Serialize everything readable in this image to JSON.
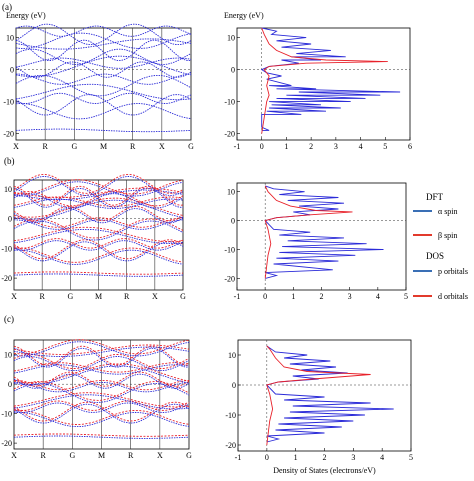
{
  "panel_labels": [
    "(a)",
    "(b)",
    "(c)"
  ],
  "legend": {
    "dft_title": "DFT",
    "dos_title": "DOS",
    "items": [
      {
        "label": "α spin",
        "color": "#3a6fb5"
      },
      {
        "label": "β spin",
        "color": "#e23a2c"
      },
      {
        "label": "p orbitals",
        "color": "#3a6fb5"
      },
      {
        "label": "d orbitals",
        "color": "#e23a2c"
      }
    ]
  },
  "colors": {
    "alpha_spin": "#2b2bd8",
    "beta_spin": "#e8212a",
    "frame": "#000000",
    "grid": "#333333"
  },
  "chart_data": [
    {
      "type": "line",
      "name": "band structure (a)",
      "ylabel": "Energy (eV)",
      "kpath": [
        "X",
        "R",
        "G",
        "M",
        "R",
        "X",
        "G"
      ],
      "ylim": [
        -22,
        13
      ],
      "yticks": [
        10,
        0,
        -10,
        -20
      ],
      "spins": [
        "alpha"
      ],
      "bands": [
        -19,
        -13,
        -11,
        -9,
        -7,
        -5,
        -3,
        0,
        1,
        2,
        4,
        6,
        8,
        9,
        11,
        12
      ]
    },
    {
      "type": "line",
      "name": "density of states (a)",
      "xlabel": "",
      "ylabel": "Energy (eV)",
      "xlim": [
        -1,
        6
      ],
      "xticks": [
        -1,
        0,
        1,
        2,
        3,
        4,
        5,
        6
      ],
      "ylim": [
        -22,
        13
      ],
      "yticks": [
        10,
        0,
        -10,
        -20
      ],
      "fermi_level": 0,
      "series": [
        {
          "color": "#2b2bd8",
          "points": [
            [
              0,
              -19
            ],
            [
              0.3,
              -19
            ],
            [
              0,
              -18
            ],
            [
              0,
              -14
            ],
            [
              1.6,
              -14
            ],
            [
              0.2,
              -13
            ],
            [
              2.6,
              -13
            ],
            [
              0.3,
              -12
            ],
            [
              3.2,
              -12
            ],
            [
              0.4,
              -11
            ],
            [
              2.4,
              -11
            ],
            [
              0.3,
              -10
            ],
            [
              3.6,
              -10
            ],
            [
              0.6,
              -9
            ],
            [
              4.2,
              -9
            ],
            [
              1.0,
              -8
            ],
            [
              4.8,
              -8
            ],
            [
              1.5,
              -7
            ],
            [
              5.6,
              -7
            ],
            [
              0.6,
              -6
            ],
            [
              2.2,
              -6
            ],
            [
              0.3,
              -5
            ],
            [
              1.2,
              -5
            ],
            [
              0.2,
              -3
            ],
            [
              0.8,
              -2
            ],
            [
              0.2,
              -1
            ],
            [
              0,
              0
            ],
            [
              0.3,
              1
            ],
            [
              1.5,
              2
            ],
            [
              0.8,
              3
            ],
            [
              2.4,
              3
            ],
            [
              1.2,
              4
            ],
            [
              3.4,
              4
            ],
            [
              1.4,
              5
            ],
            [
              2.8,
              6
            ],
            [
              0.8,
              7
            ],
            [
              2.0,
              8
            ],
            [
              0.6,
              9
            ],
            [
              1.8,
              10
            ],
            [
              0.4,
              11
            ],
            [
              0.6,
              12
            ],
            [
              0,
              13
            ]
          ]
        },
        {
          "color": "#e8212a",
          "points": [
            [
              0,
              -20
            ],
            [
              0.1,
              -15
            ],
            [
              0.2,
              -10
            ],
            [
              0.3,
              -8
            ],
            [
              0.2,
              -5
            ],
            [
              0.3,
              -2
            ],
            [
              0.1,
              0
            ],
            [
              0.3,
              1
            ],
            [
              1.8,
              2
            ],
            [
              5.1,
              2.5
            ],
            [
              2.6,
              3
            ],
            [
              1.2,
              4
            ],
            [
              0.6,
              6
            ],
            [
              0.3,
              8
            ],
            [
              0.1,
              11
            ],
            [
              0,
              13
            ]
          ]
        }
      ]
    },
    {
      "type": "line",
      "name": "band structure (b)",
      "kpath": [
        "X",
        "R",
        "G",
        "M",
        "R",
        "X",
        "G"
      ],
      "ylim": [
        -24,
        13
      ],
      "yticks": [
        10,
        0,
        -10,
        -20
      ],
      "spins": [
        "alpha",
        "beta"
      ],
      "bands": [
        -19,
        -13,
        -11,
        -9,
        -6,
        -4,
        -2,
        1,
        3,
        5,
        6,
        7,
        8,
        10,
        11
      ]
    },
    {
      "type": "line",
      "name": "density of states (b)",
      "xlim": [
        -1,
        5
      ],
      "xticks": [
        -1,
        0,
        1,
        2,
        3,
        4,
        5
      ],
      "ylim": [
        -24,
        13
      ],
      "yticks": [
        10,
        0,
        -10,
        -20
      ],
      "fermi_level": 0,
      "series": [
        {
          "color": "#2b2bd8",
          "points": [
            [
              0,
              -20
            ],
            [
              0.4,
              -19
            ],
            [
              0,
              -18
            ],
            [
              2.4,
              -17
            ],
            [
              0.3,
              -15
            ],
            [
              2.6,
              -14
            ],
            [
              0.4,
              -13
            ],
            [
              3.2,
              -12
            ],
            [
              0.5,
              -11
            ],
            [
              4.2,
              -10
            ],
            [
              0.6,
              -9
            ],
            [
              3.6,
              -8
            ],
            [
              0.8,
              -7
            ],
            [
              2.8,
              -6
            ],
            [
              0.5,
              -5
            ],
            [
              1.6,
              -4
            ],
            [
              0.3,
              -3
            ],
            [
              0,
              0
            ],
            [
              0.4,
              1
            ],
            [
              1.6,
              2
            ],
            [
              1.0,
              3
            ],
            [
              2.6,
              4
            ],
            [
              1.2,
              5
            ],
            [
              2.8,
              6
            ],
            [
              0.8,
              7
            ],
            [
              2.6,
              8
            ],
            [
              0.5,
              9
            ],
            [
              1.4,
              10
            ],
            [
              0.3,
              11
            ],
            [
              0,
              12
            ]
          ]
        },
        {
          "color": "#e8212a",
          "points": [
            [
              0,
              -20
            ],
            [
              0.1,
              -12
            ],
            [
              0.2,
              -8
            ],
            [
              0.1,
              -3
            ],
            [
              0,
              0
            ],
            [
              0.4,
              1
            ],
            [
              1.6,
              2
            ],
            [
              3.1,
              3
            ],
            [
              1.8,
              3.5
            ],
            [
              0.9,
              5
            ],
            [
              0.4,
              7
            ],
            [
              0.1,
              10
            ],
            [
              0,
              12
            ]
          ]
        }
      ]
    },
    {
      "type": "line",
      "name": "band structure (c)",
      "kpath": [
        "X",
        "R",
        "G",
        "M",
        "R",
        "X",
        "G"
      ],
      "ylim": [
        -22,
        15
      ],
      "yticks": [
        10,
        0,
        -10,
        -20
      ],
      "spins": [
        "alpha",
        "beta"
      ],
      "bands": [
        -18,
        -12,
        -10,
        -8,
        -6,
        -3,
        -1,
        1,
        3,
        5,
        7,
        9,
        11,
        12
      ]
    },
    {
      "type": "line",
      "name": "density of states (c)",
      "xlabel": "Density of States (electrons/eV)",
      "xlim": [
        -1,
        5
      ],
      "xticks": [
        -1,
        0,
        1,
        2,
        3,
        4,
        5
      ],
      "ylim": [
        -22,
        15
      ],
      "yticks": [
        10,
        0,
        -10,
        -20
      ],
      "fermi_level": 0,
      "series": [
        {
          "color": "#2b2bd8",
          "points": [
            [
              0,
              -19
            ],
            [
              0.4,
              -18
            ],
            [
              0,
              -17
            ],
            [
              2.0,
              -16
            ],
            [
              0.3,
              -15
            ],
            [
              2.6,
              -14
            ],
            [
              0.4,
              -13
            ],
            [
              3.0,
              -12
            ],
            [
              0.6,
              -11
            ],
            [
              3.4,
              -10
            ],
            [
              0.8,
              -9
            ],
            [
              4.4,
              -8
            ],
            [
              0.9,
              -7
            ],
            [
              3.6,
              -6
            ],
            [
              0.6,
              -5
            ],
            [
              2.0,
              -4
            ],
            [
              0.3,
              -3
            ],
            [
              0,
              0
            ],
            [
              0.4,
              1
            ],
            [
              1.8,
              2
            ],
            [
              0.9,
              3
            ],
            [
              2.8,
              4
            ],
            [
              1.2,
              5
            ],
            [
              2.4,
              6
            ],
            [
              0.8,
              7
            ],
            [
              2.2,
              8
            ],
            [
              0.6,
              9
            ],
            [
              1.4,
              10
            ],
            [
              0.3,
              11
            ],
            [
              0,
              13
            ]
          ]
        },
        {
          "color": "#e8212a",
          "points": [
            [
              0,
              -20
            ],
            [
              0.1,
              -12
            ],
            [
              0.2,
              -8
            ],
            [
              0.1,
              -3
            ],
            [
              0,
              0
            ],
            [
              0.4,
              1
            ],
            [
              1.6,
              2
            ],
            [
              3.6,
              3.5
            ],
            [
              1.4,
              4.5
            ],
            [
              0.6,
              6
            ],
            [
              0.3,
              9
            ],
            [
              0.1,
              12
            ],
            [
              0,
              13
            ]
          ]
        }
      ]
    }
  ]
}
